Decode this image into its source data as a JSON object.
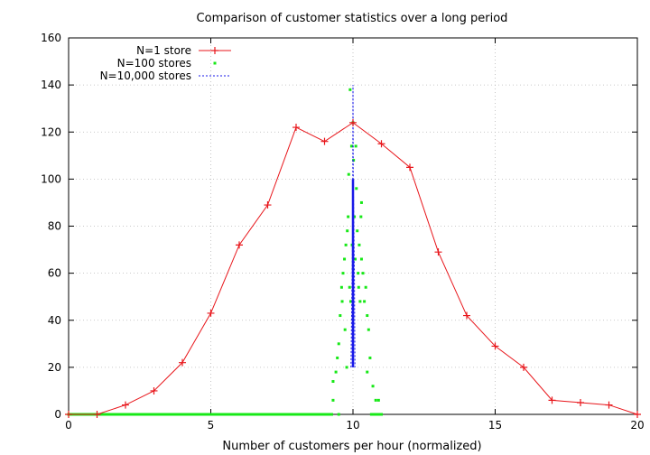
{
  "chart_data": {
    "type": "line",
    "title": "Comparison of customer statistics over a long period",
    "xlabel": "Number of customers per hour (normalized)",
    "ylabel": "",
    "xlim": [
      0,
      20
    ],
    "ylim": [
      0,
      160
    ],
    "x_ticks": [
      0,
      5,
      10,
      15,
      20
    ],
    "y_ticks": [
      0,
      20,
      40,
      60,
      80,
      100,
      120,
      140,
      160
    ],
    "grid": true,
    "legend_position": "top-left",
    "series": [
      {
        "name": "N=1 store",
        "style": "line-points-plus",
        "color": "#e8161b",
        "x": [
          0,
          1,
          2,
          3,
          4,
          5,
          6,
          7,
          8,
          9,
          10,
          11,
          12,
          13,
          14,
          15,
          16,
          17,
          18,
          19,
          20
        ],
        "values": [
          0,
          0,
          4,
          10,
          22,
          43,
          72,
          89,
          122,
          116,
          124,
          115,
          105,
          69,
          42,
          29,
          20,
          6,
          5,
          4,
          0
        ]
      },
      {
        "name": "N=100 stores",
        "style": "dots",
        "color": "#17e817",
        "x": [
          0,
          0.5,
          1,
          1.5,
          2,
          2.5,
          3,
          3.5,
          4,
          4.5,
          5,
          5.5,
          6,
          6.5,
          7,
          7.5,
          8,
          8.5,
          9,
          9.5,
          9.2,
          9.3,
          9.3,
          9.4,
          9.45,
          9.5,
          9.55,
          9.6,
          9.62,
          9.65,
          9.7,
          9.72,
          9.75,
          9.78,
          9.8,
          9.83,
          9.85,
          9.88,
          9.9,
          9.92,
          9.95,
          9.97,
          10.0,
          10.02,
          10.05,
          10.08,
          10.1,
          10.12,
          10.15,
          10.18,
          10.2,
          10.22,
          10.25,
          10.28,
          10.3,
          10.35,
          10.4,
          10.45,
          10.5,
          10.55,
          10.6,
          10.7,
          10.8,
          10.9,
          11.0,
          10.3,
          10.5
        ],
        "values": [
          0,
          0,
          0,
          0,
          0,
          0,
          0,
          0,
          0,
          0,
          0,
          0,
          0,
          0,
          0,
          0,
          0,
          0,
          0,
          0,
          0,
          6,
          14,
          18,
          24,
          30,
          42,
          54,
          48,
          60,
          66,
          36,
          72,
          20,
          78,
          84,
          102,
          54,
          138,
          48,
          114,
          72,
          124,
          108,
          84,
          66,
          114,
          96,
          78,
          60,
          54,
          72,
          48,
          84,
          66,
          60,
          48,
          54,
          42,
          36,
          24,
          12,
          6,
          6,
          0,
          90,
          18
        ]
      },
      {
        "name": "N=10,000 stores",
        "style": "dotted-line",
        "color": "#1a1ae8",
        "x": [
          9.93,
          9.95,
          9.97,
          9.99,
          10.0,
          10.01,
          10.03,
          10.05,
          10.07
        ],
        "values": [
          20,
          40,
          60,
          80,
          140,
          100,
          80,
          60,
          20
        ]
      }
    ]
  }
}
